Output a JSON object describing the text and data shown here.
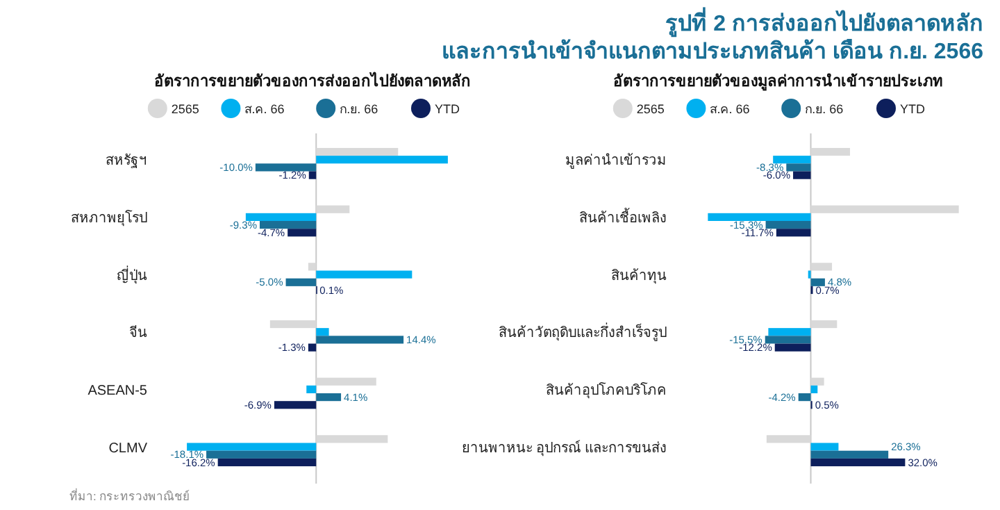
{
  "chart_data": [
    {
      "type": "bar",
      "orientation": "horizontal",
      "subtitle": "อัตราการขยายตัวของการส่งออกไปยังตลาดหลัก",
      "annotations": [
        "ที่มา: กระทรวงพาณิชย์"
      ],
      "legend": "top",
      "categories": [
        "สหรัฐฯ",
        "สหภาพยุโรป",
        "ญี่ปุ่น",
        "จีน",
        "ASEAN-5",
        "CLMV"
      ],
      "series": [
        {
          "name": "2565",
          "color": "#d9d9d9",
          "values": [
            13.5,
            5.5,
            -1.3,
            -7.6,
            9.9,
            11.8
          ]
        },
        {
          "name": "ส.ค. 66",
          "color": "#00b0f0",
          "values": [
            21.7,
            -11.6,
            15.8,
            2.1,
            -1.6,
            -21.3
          ]
        },
        {
          "name": "ก.ย. 66",
          "color": "#1a6f96",
          "values": [
            -10.0,
            -9.3,
            -5.0,
            14.4,
            4.1,
            -18.1
          ],
          "value_labels": [
            "-10.0%",
            "-9.3%",
            "-5.0%",
            "14.4%",
            "4.1%",
            "-18.1%"
          ]
        },
        {
          "name": "YTD",
          "color": "#0d1f5c",
          "values": [
            -1.2,
            -4.7,
            0.1,
            -1.3,
            -6.9,
            -16.2
          ],
          "value_labels": [
            "-1.2%",
            "-4.7%",
            "0.1%",
            "-1.3%",
            "-6.9%",
            "-16.2%"
          ]
        }
      ]
    },
    {
      "type": "bar",
      "orientation": "horizontal",
      "title": "รูปที่ 2  การส่งออกไปยังตลาดหลัก\nและการนำเข้าจำแนกตามประเภทสินค้า เดือน ก.ย. 2566",
      "subtitle": "อัตราการขยายตัวของมูลค่าการนำเข้ารายประเภท",
      "legend": "top",
      "categories": [
        "มูลค่านำเข้ารวม",
        "สินค้าเชื้อเพลิง",
        "สินค้าทุน",
        "สินค้าวัตถุดิบและกึ่งสำเร็จรูป",
        "สินค้าอุปโภคบริโภค",
        "ยานพาหนะ อุปกรณ์ และการขนส่ง"
      ],
      "series": [
        {
          "name": "2565",
          "color": "#d9d9d9",
          "values": [
            13.3,
            50.2,
            7.2,
            8.9,
            4.5,
            -15.0
          ]
        },
        {
          "name": "ส.ค. 66",
          "color": "#00b0f0",
          "values": [
            -12.8,
            -34.9,
            -0.9,
            -14.4,
            2.3,
            9.4
          ]
        },
        {
          "name": "ก.ย. 66",
          "color": "#1a6f96",
          "values": [
            -8.3,
            -15.3,
            4.8,
            -15.5,
            -4.2,
            26.3
          ],
          "value_labels": [
            "-8.3%",
            "-15.3%",
            "4.8%",
            "-15.5%",
            "-4.2%",
            "26.3%"
          ]
        },
        {
          "name": "YTD",
          "color": "#0d1f5c",
          "values": [
            -6.0,
            -11.7,
            0.7,
            -12.2,
            0.5,
            32.0
          ],
          "value_labels": [
            "-6.0%",
            "-11.7%",
            "0.7%",
            "-12.2%",
            "0.5%",
            "32.0%"
          ]
        }
      ]
    }
  ]
}
